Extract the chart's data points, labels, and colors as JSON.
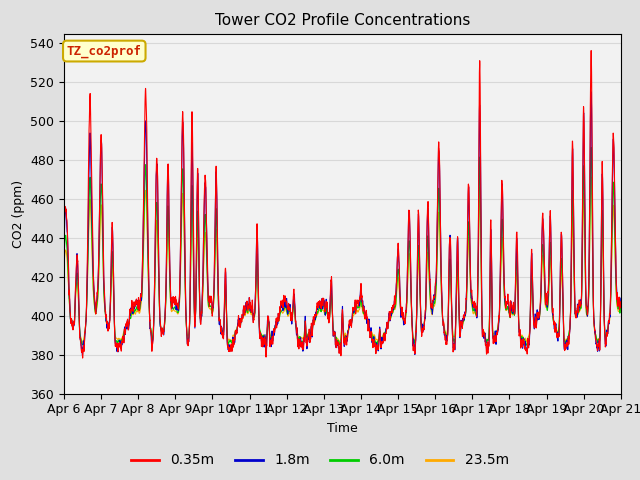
{
  "title": "Tower CO2 Profile Concentrations",
  "xlabel": "Time",
  "ylabel": "CO2 (ppm)",
  "ylim": [
    360,
    545
  ],
  "yticks": [
    360,
    380,
    400,
    420,
    440,
    460,
    480,
    500,
    520,
    540
  ],
  "n_points": 3600,
  "label_box_text": "TZ_co2prof",
  "label_box_color": "#ffffcc",
  "label_box_edge": "#ccaa00",
  "fig_bg_color": "#e0e0e0",
  "plot_bg_color": "#f2f2f2",
  "line_colors": [
    "#ff0000",
    "#0000cc",
    "#00cc00",
    "#ffaa00"
  ],
  "line_labels": [
    "0.35m",
    "1.8m",
    "6.0m",
    "23.5m"
  ],
  "xtick_labels": [
    "Apr 6",
    "Apr 7",
    "Apr 8",
    "Apr 9",
    "Apr 10",
    "Apr 11",
    "Apr 12",
    "Apr 13",
    "Apr 14",
    "Apr 15",
    "Apr 16",
    "Apr 17",
    "Apr 18",
    "Apr 19",
    "Apr 20",
    "Apr 21"
  ],
  "grid_color": "#d8d8d8",
  "grid_linewidth": 0.8,
  "line_lw": 0.8,
  "legend_fontsize": 10,
  "title_fontsize": 11,
  "axis_fontsize": 9,
  "label_fontsize": 9
}
